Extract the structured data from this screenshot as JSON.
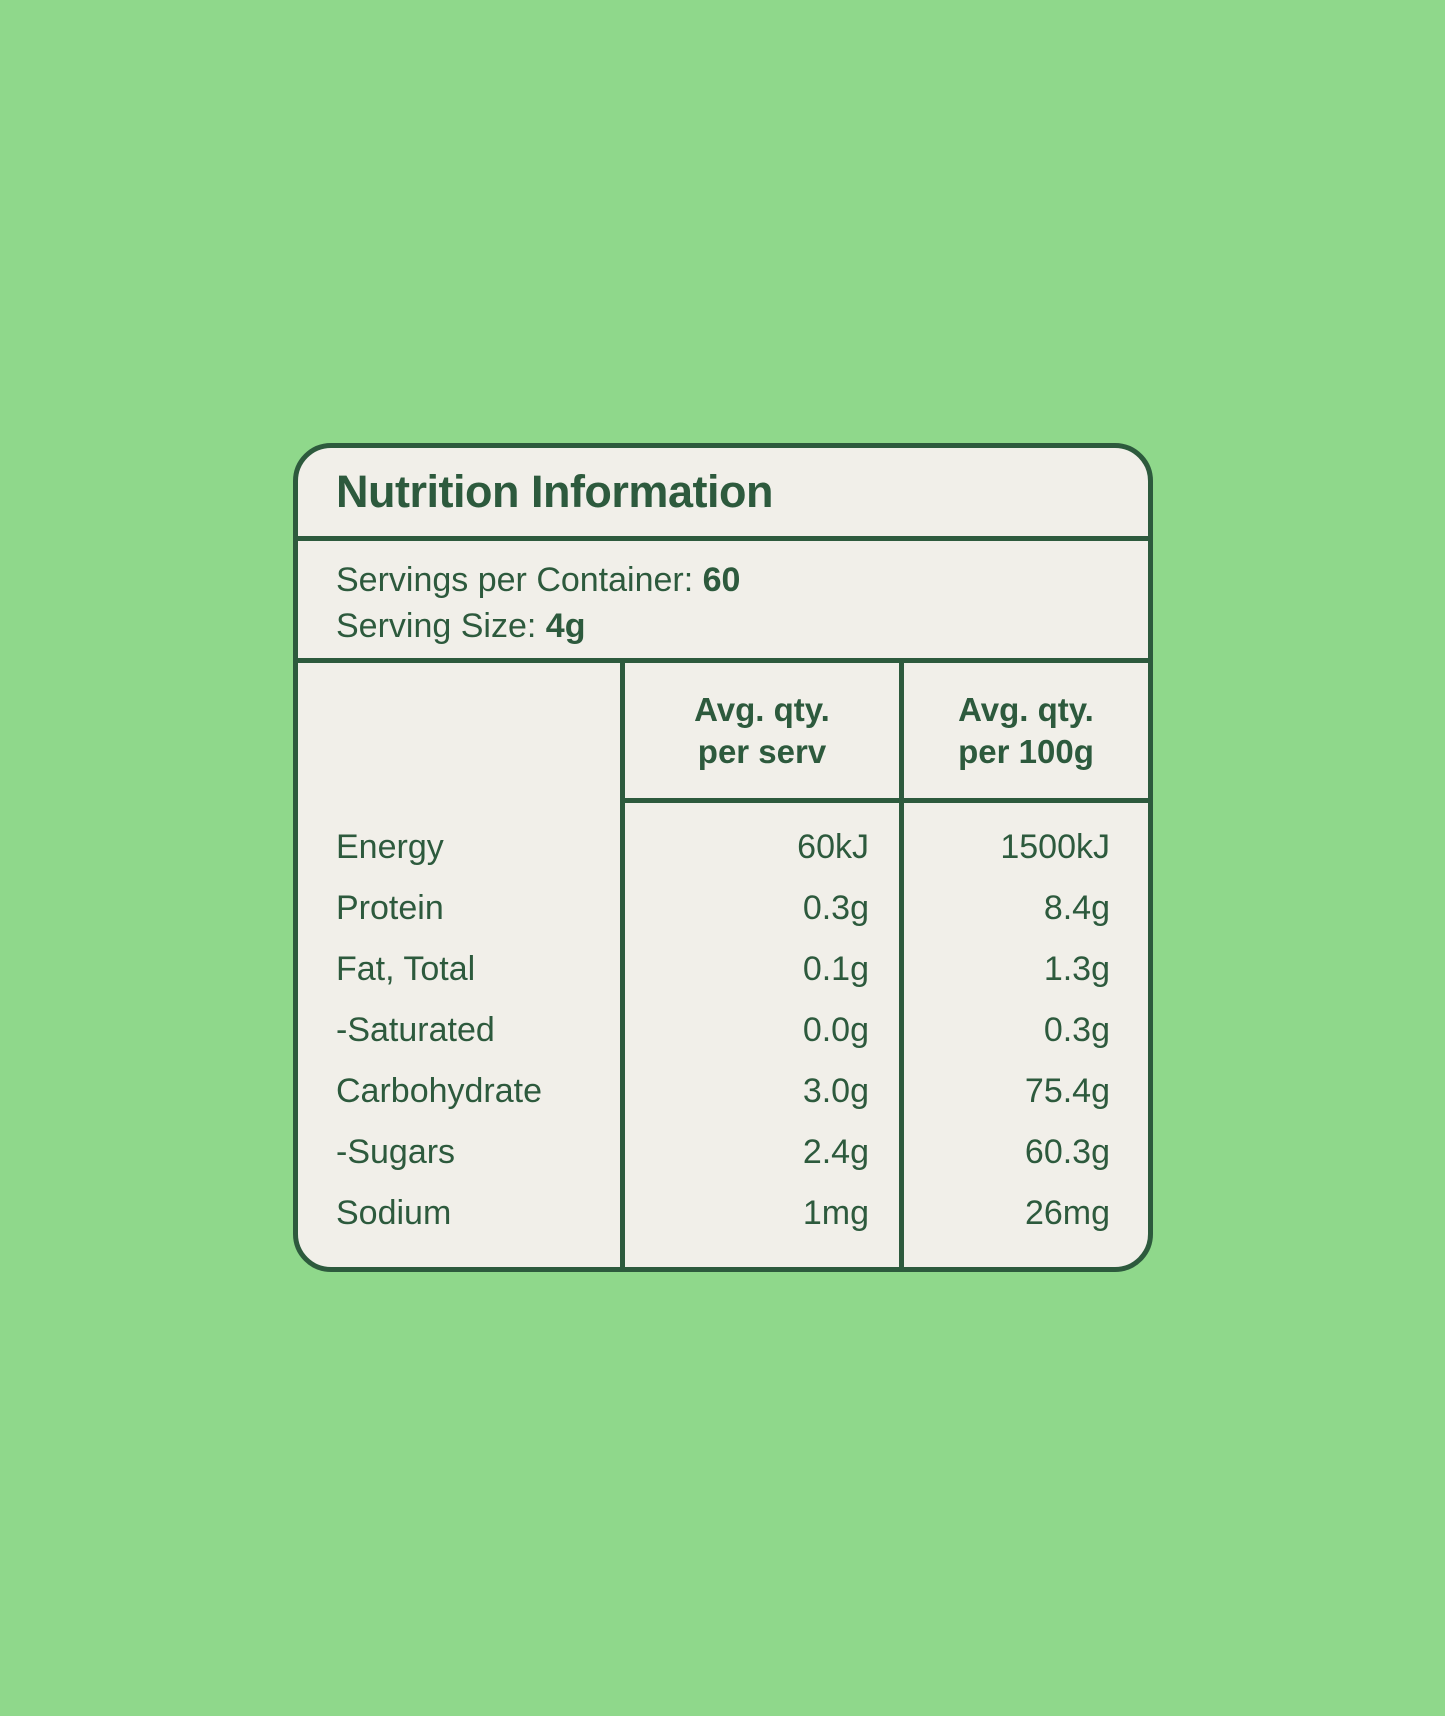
{
  "colors": {
    "background": "#8fd88b",
    "ink": "#2d5a3d",
    "panel": "#f1efe9"
  },
  "label": {
    "title": "Nutrition Information",
    "servings": {
      "label": "Servings per Container:",
      "value": "60"
    },
    "serving_size": {
      "label": "Serving Size:",
      "value": "4g"
    }
  },
  "table": {
    "headers": [
      {
        "line1": "Avg. qty.",
        "line2": "per serv"
      },
      {
        "line1": "Avg. qty.",
        "line2": "per 100g"
      }
    ],
    "rows": [
      {
        "name": "Energy",
        "per_serv": "60kJ",
        "per_100g": "1500kJ"
      },
      {
        "name": "Protein",
        "per_serv": "0.3g",
        "per_100g": "8.4g"
      },
      {
        "name": "Fat, Total",
        "per_serv": "0.1g",
        "per_100g": "1.3g"
      },
      {
        "name": "-Saturated",
        "per_serv": "0.0g",
        "per_100g": "0.3g"
      },
      {
        "name": "Carbohydrate",
        "per_serv": "3.0g",
        "per_100g": "75.4g"
      },
      {
        "name": "-Sugars",
        "per_serv": "2.4g",
        "per_100g": "60.3g"
      },
      {
        "name": "Sodium",
        "per_serv": "1mg",
        "per_100g": "26mg"
      }
    ]
  }
}
